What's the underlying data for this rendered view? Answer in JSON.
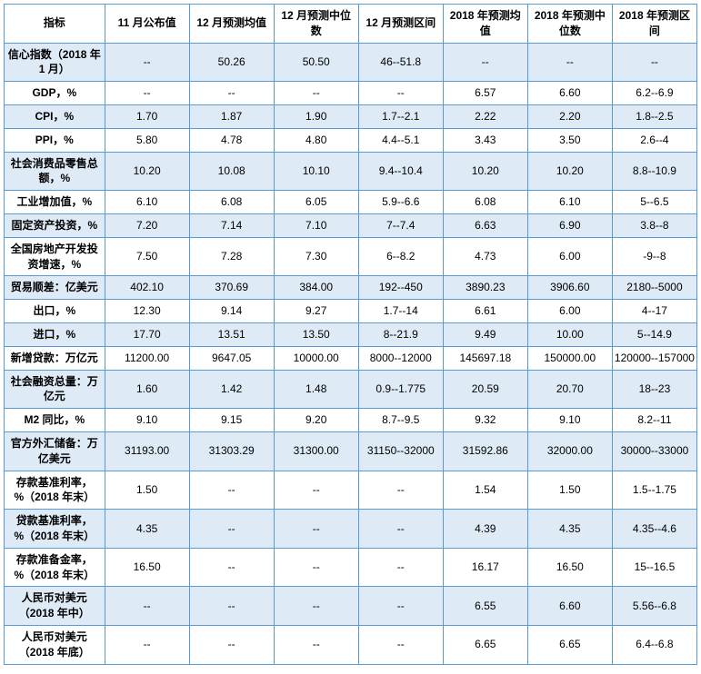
{
  "table": {
    "columns": [
      "指标",
      "11 月公布值",
      "12 月预测均值",
      "12 月预测中位数",
      "12 月预测区间",
      "2018 年预测均值",
      "2018 年预测中位数",
      "2018 年预测区间"
    ],
    "column_widths_pct": [
      14.5,
      12.2,
      12.2,
      12.2,
      12.2,
      12.2,
      12.2,
      12.2
    ],
    "header_fontweight": "bold",
    "header_fontsize": 12,
    "cell_fontsize": 12,
    "border_color": "#5b9bd5",
    "row_stripe_colors": [
      "#deeaf6",
      "#ffffff"
    ],
    "background_color": "#ffffff",
    "text_color": "#000000",
    "first_col_fontweight": "bold",
    "rows": [
      [
        "信心指数（2018 年1 月）",
        "--",
        "50.26",
        "50.50",
        "46--51.8",
        "--",
        "--",
        "--"
      ],
      [
        "GDP，%",
        "--",
        "--",
        "--",
        "--",
        "6.57",
        "6.60",
        "6.2--6.9"
      ],
      [
        "CPI，%",
        "1.70",
        "1.87",
        "1.90",
        "1.7--2.1",
        "2.22",
        "2.20",
        "1.8--2.5"
      ],
      [
        "PPI，%",
        "5.80",
        "4.78",
        "4.80",
        "4.4--5.1",
        "3.43",
        "3.50",
        "2.6--4"
      ],
      [
        "社会消费品零售总额，%",
        "10.20",
        "10.08",
        "10.10",
        "9.4--10.4",
        "10.20",
        "10.20",
        "8.8--10.9"
      ],
      [
        "工业增加值，%",
        "6.10",
        "6.08",
        "6.05",
        "5.9--6.6",
        "6.08",
        "6.10",
        "5--6.5"
      ],
      [
        "固定资产投资，%",
        "7.20",
        "7.14",
        "7.10",
        "7--7.4",
        "6.63",
        "6.90",
        "3.8--8"
      ],
      [
        "全国房地产开发投资增速，%",
        "7.50",
        "7.28",
        "7.30",
        "6--8.2",
        "4.73",
        "6.00",
        "-9--8"
      ],
      [
        "贸易顺差：亿美元",
        "402.10",
        "370.69",
        "384.00",
        "192--450",
        "3890.23",
        "3906.60",
        "2180--5000"
      ],
      [
        "出口，%",
        "12.30",
        "9.14",
        "9.27",
        "1.7--14",
        "6.61",
        "6.00",
        "4--17"
      ],
      [
        "进口，%",
        "17.70",
        "13.51",
        "13.50",
        "8--21.9",
        "9.49",
        "10.00",
        "5--14.9"
      ],
      [
        "新增贷款：万亿元",
        "11200.00",
        "9647.05",
        "10000.00",
        "8000--12000",
        "145697.18",
        "150000.00",
        "120000--157000"
      ],
      [
        "社会融资总量：万亿元",
        "1.60",
        "1.42",
        "1.48",
        "0.9--1.775",
        "20.59",
        "20.70",
        "18--23"
      ],
      [
        "M2 同比，%",
        "9.10",
        "9.15",
        "9.20",
        "8.7--9.5",
        "9.32",
        "9.10",
        "8.2--11"
      ],
      [
        "官方外汇储备：万亿美元",
        "31193.00",
        "31303.29",
        "31300.00",
        "31150--32000",
        "31592.86",
        "32000.00",
        "30000--33000"
      ],
      [
        "存款基准利率，%（2018 年末）",
        "1.50",
        "--",
        "--",
        "--",
        "1.54",
        "1.50",
        "1.5--1.75"
      ],
      [
        "贷款基准利率，%（2018 年末）",
        "4.35",
        "--",
        "--",
        "--",
        "4.39",
        "4.35",
        "4.35--4.6"
      ],
      [
        "存款准备金率，%（2018 年末）",
        "16.50",
        "--",
        "--",
        "--",
        "16.17",
        "16.50",
        "15--16.5"
      ],
      [
        "人民币对美元（2018 年中）",
        "--",
        "--",
        "--",
        "--",
        "6.55",
        "6.60",
        "5.56--6.8"
      ],
      [
        "人民币对美元（2018 年底）",
        "--",
        "--",
        "--",
        "--",
        "6.65",
        "6.65",
        "6.4--6.8"
      ]
    ]
  }
}
